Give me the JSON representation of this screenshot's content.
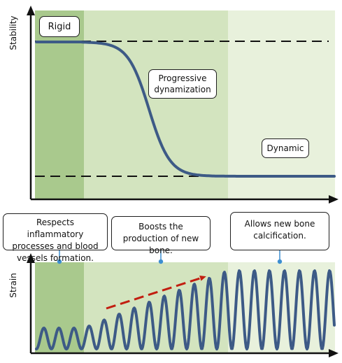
{
  "colors": {
    "phase1": "#a9c98d",
    "phase2": "#d3e4bf",
    "phase3": "#e8f1dc",
    "curve": "#3d5a86",
    "arrow": "#c21e10",
    "axis": "#111111"
  },
  "top_panel": {
    "ylabel": "Stability",
    "labels": {
      "rigid": "Rigid",
      "progressive": "Progressive dynamization",
      "dynamic": "Dynamic"
    }
  },
  "bottom_panel": {
    "ylabel": "Strain"
  },
  "notes": {
    "note1": "Respects inflammatory processes and blood vessels formation.",
    "note2": "Boosts the production of new bone.",
    "note3": "Allows new bone calcification."
  }
}
